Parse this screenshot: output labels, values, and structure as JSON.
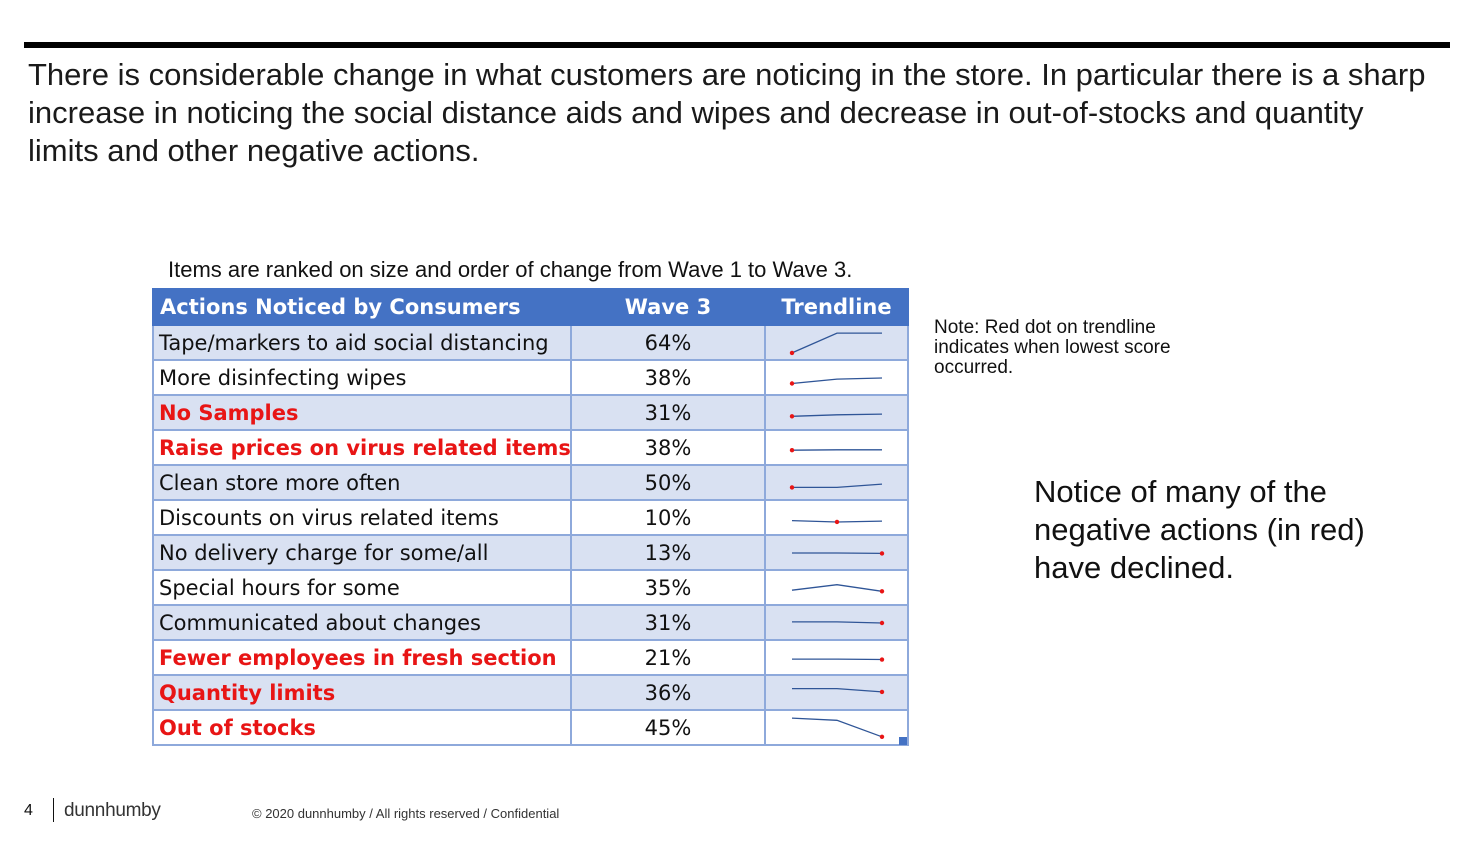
{
  "headline": "There is considerable change in what customers are noticing in the store.  In particular there is a sharp increase in noticing the social distance aids and wipes and decrease in out-of-stocks and quantity limits and other negative actions.",
  "table_caption": "Items are ranked on size and order of change from Wave 1 to Wave 3.",
  "table": {
    "headers": {
      "action": "Actions Noticed by Consumers",
      "wave3": "Wave 3",
      "trend": "Trendline"
    },
    "colors": {
      "header_bg": "#4472c4",
      "band_bg": "#d9e1f2",
      "negative_text": "#e81515",
      "trend_line": "#2f5597",
      "lowest_dot": "#e81515"
    },
    "rows": [
      {
        "action": "Tape/markers to aid social distancing",
        "wave3": "64%",
        "negative": false,
        "trend": [
          0.05,
          0.95,
          0.95
        ],
        "lowest": 0
      },
      {
        "action": "More disinfecting wipes",
        "wave3": "38%",
        "negative": false,
        "trend": [
          0.25,
          0.45,
          0.5
        ],
        "lowest": 0
      },
      {
        "action": "No Samples",
        "wave3": "31%",
        "negative": true,
        "trend": [
          0.35,
          0.42,
          0.45
        ],
        "lowest": 0
      },
      {
        "action": "Raise prices on virus related items",
        "wave3": "38%",
        "negative": true,
        "trend": [
          0.4,
          0.42,
          0.42
        ],
        "lowest": 0
      },
      {
        "action": "Clean store more often",
        "wave3": "50%",
        "negative": false,
        "trend": [
          0.3,
          0.3,
          0.45
        ],
        "lowest": 0
      },
      {
        "action": "Discounts on virus related items",
        "wave3": "10%",
        "negative": false,
        "trend": [
          0.38,
          0.32,
          0.36
        ],
        "lowest": 1
      },
      {
        "action": "No delivery charge for some/all",
        "wave3": "13%",
        "negative": false,
        "trend": [
          0.5,
          0.5,
          0.48
        ],
        "lowest": 2
      },
      {
        "action": "Special hours for some",
        "wave3": "35%",
        "negative": false,
        "trend": [
          0.4,
          0.65,
          0.35
        ],
        "lowest": 2
      },
      {
        "action": "Communicated about changes",
        "wave3": "31%",
        "negative": false,
        "trend": [
          0.55,
          0.55,
          0.5
        ],
        "lowest": 2
      },
      {
        "action": "Fewer employees in fresh section",
        "wave3": "21%",
        "negative": true,
        "trend": [
          0.45,
          0.45,
          0.43
        ],
        "lowest": 2
      },
      {
        "action": "Quantity limits",
        "wave3": "36%",
        "negative": true,
        "trend": [
          0.7,
          0.7,
          0.55
        ],
        "lowest": 2
      },
      {
        "action": "Out of stocks",
        "wave3": "45%",
        "negative": true,
        "trend": [
          0.95,
          0.85,
          0.1
        ],
        "lowest": 2
      }
    ]
  },
  "note": "Note:  Red dot on trendline indicates when lowest score occurred.",
  "callout": "Notice of many of the negative actions (in red) have declined.",
  "footer": {
    "page_number": "4",
    "brand": "dunnhumby",
    "copyright": "© 2020 dunnhumby / All rights reserved / Confidential"
  }
}
